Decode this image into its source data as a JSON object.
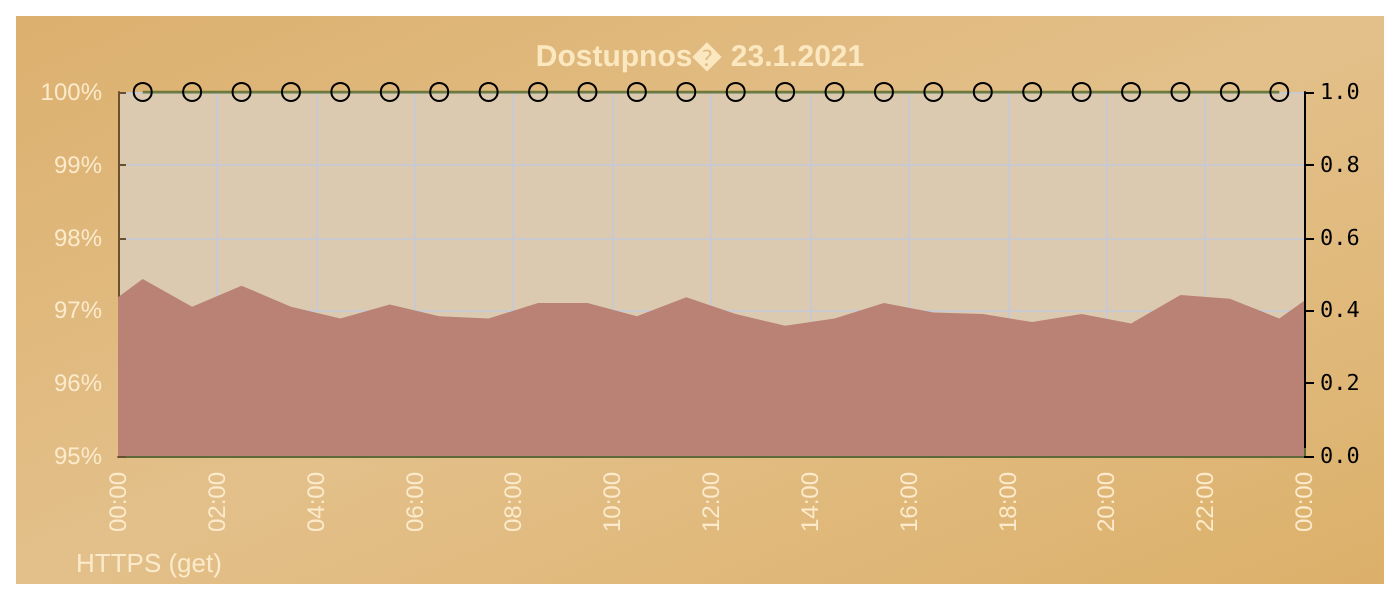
{
  "chart_data": {
    "type": "area",
    "title": "Dostupnos� 23.1.2021",
    "xlim": [
      0,
      24
    ],
    "xticks": [
      {
        "value": 0,
        "label": "00:00"
      },
      {
        "value": 2,
        "label": "02:00"
      },
      {
        "value": 4,
        "label": "04:00"
      },
      {
        "value": 6,
        "label": "06:00"
      },
      {
        "value": 8,
        "label": "08:00"
      },
      {
        "value": 10,
        "label": "10:00"
      },
      {
        "value": 12,
        "label": "12:00"
      },
      {
        "value": 14,
        "label": "14:00"
      },
      {
        "value": 16,
        "label": "16:00"
      },
      {
        "value": 18,
        "label": "18:00"
      },
      {
        "value": 20,
        "label": "20:00"
      },
      {
        "value": 22,
        "label": "22:00"
      },
      {
        "value": 24,
        "label": "00:00"
      }
    ],
    "ylim": [
      95,
      100
    ],
    "yticks": [
      {
        "value": 95,
        "label": "95%"
      },
      {
        "value": 96,
        "label": "96%"
      },
      {
        "value": 97,
        "label": "97%"
      },
      {
        "value": 98,
        "label": "98%"
      },
      {
        "value": 99,
        "label": "99%"
      },
      {
        "value": 100,
        "label": "100%"
      }
    ],
    "y2lim": [
      0,
      1
    ],
    "y2ticks": [
      {
        "value": 0,
        "label": "0.0"
      },
      {
        "value": 0.2,
        "label": "0.2"
      },
      {
        "value": 0.4,
        "label": "0.4"
      },
      {
        "value": 0.6,
        "label": "0.6"
      },
      {
        "value": 0.8,
        "label": "0.8"
      },
      {
        "value": 1,
        "label": "1.0"
      }
    ],
    "series": [
      {
        "color": "#b98274",
        "x": [
          0,
          0.5,
          1.5,
          2.5,
          3.5,
          4.5,
          5.5,
          6.5,
          7.5,
          8.5,
          9.5,
          10.5,
          11.5,
          12.5,
          13.5,
          14.5,
          15.5,
          16.5,
          17.5,
          18.5,
          19.5,
          20.5,
          21.5,
          22.5,
          23.5,
          24
        ],
        "values": [
          97.18,
          97.43,
          97.05,
          97.34,
          97.05,
          96.89,
          97.08,
          96.92,
          96.89,
          97.1,
          97.1,
          96.92,
          97.18,
          96.95,
          96.79,
          96.89,
          97.1,
          96.97,
          96.95,
          96.84,
          96.95,
          96.82,
          97.21,
          97.16,
          96.89,
          97.13
        ]
      },
      {
        "type": "line",
        "axis": "y2",
        "color": "#6e7a3c",
        "marker": "circle",
        "x": [
          0.5,
          1.5,
          2.5,
          3.5,
          4.5,
          5.5,
          6.5,
          7.5,
          8.5,
          9.5,
          10.5,
          11.5,
          12.5,
          13.5,
          14.5,
          15.5,
          16.5,
          17.5,
          18.5,
          19.5,
          20.5,
          21.5,
          22.5,
          23.5
        ],
        "values": [
          1,
          1,
          1,
          1,
          1,
          1,
          1,
          1,
          1,
          1,
          1,
          1,
          1,
          1,
          1,
          1,
          1,
          1,
          1,
          1,
          1,
          1,
          1,
          1
        ]
      }
    ],
    "grid": true,
    "annotations": [
      "HTTPS (get)"
    ]
  }
}
